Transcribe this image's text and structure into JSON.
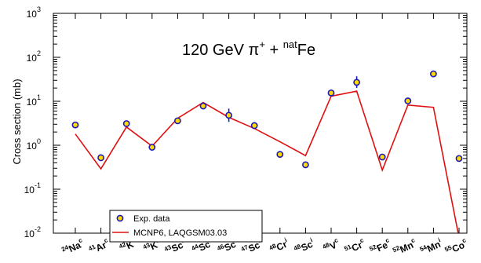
{
  "chart_data": {
    "type": "scatter",
    "title_main": "120 GeV π",
    "title_sup1": "+",
    "title_mid": " + ",
    "title_sup2": "nat",
    "title_end": "Fe",
    "ylabel": "Cross section (mb)",
    "y_scale": "log",
    "ylim": [
      0.01,
      1000
    ],
    "y_ticks": [
      {
        "base": "10",
        "exp": "-2"
      },
      {
        "base": "10",
        "exp": "-1"
      },
      {
        "base": "10",
        "exp": "0"
      },
      {
        "base": "10",
        "exp": "1"
      },
      {
        "base": "10",
        "exp": "2"
      },
      {
        "base": "10",
        "exp": "3"
      }
    ],
    "categories": [
      {
        "mass": "24",
        "el": "Na",
        "kind": "c"
      },
      {
        "mass": "41",
        "el": "Ar",
        "kind": "c"
      },
      {
        "mass": "42",
        "el": "K",
        "kind": "i"
      },
      {
        "mass": "43",
        "el": "K",
        "kind": "c"
      },
      {
        "mass": "43",
        "el": "Sc",
        "kind": "c"
      },
      {
        "mass": "44",
        "el": "Sc",
        "kind": "i"
      },
      {
        "mass": "46",
        "el": "Sc",
        "kind": "i"
      },
      {
        "mass": "47",
        "el": "Sc",
        "kind": "c"
      },
      {
        "mass": "48",
        "el": "Cr",
        "kind": "i"
      },
      {
        "mass": "48",
        "el": "Sc",
        "kind": "i"
      },
      {
        "mass": "48",
        "el": "V",
        "kind": "c"
      },
      {
        "mass": "51",
        "el": "Cr",
        "kind": "c"
      },
      {
        "mass": "52",
        "el": "Fe",
        "kind": "c"
      },
      {
        "mass": "52",
        "el": "Mn",
        "kind": "c"
      },
      {
        "mass": "54",
        "el": "Mn",
        "kind": "i"
      },
      {
        "mass": "55",
        "el": "Co",
        "kind": "c"
      }
    ],
    "series": [
      {
        "name": "Exp. data",
        "style": "points",
        "values": [
          2.9,
          0.52,
          3.1,
          0.9,
          3.6,
          7.8,
          4.8,
          2.8,
          0.62,
          0.36,
          15.5,
          27,
          0.54,
          10.2,
          42,
          0.5
        ],
        "err_lo": [
          2.75,
          0.48,
          2.95,
          0.85,
          3.4,
          7.4,
          3.4,
          2.65,
          0.58,
          0.3,
          14.5,
          20,
          0.5,
          9.6,
          36,
          0.47
        ],
        "err_hi": [
          3.05,
          0.56,
          3.25,
          0.95,
          3.8,
          8.2,
          6.8,
          2.95,
          0.66,
          0.43,
          16.5,
          37,
          0.58,
          10.8,
          50,
          0.53
        ]
      },
      {
        "name": "MCNP6, LAQGSM03.03",
        "style": "line",
        "values": [
          1.8,
          0.29,
          2.6,
          0.95,
          4.1,
          9.4,
          4.3,
          2.4,
          1.2,
          0.58,
          13,
          17,
          0.27,
          8.2,
          7.3,
          0.008
        ]
      }
    ],
    "legend_position": "bottom-left",
    "colors": {
      "points_face": "#ffd800",
      "points_edge": "#1a1ab8",
      "line": "#e01010"
    }
  }
}
